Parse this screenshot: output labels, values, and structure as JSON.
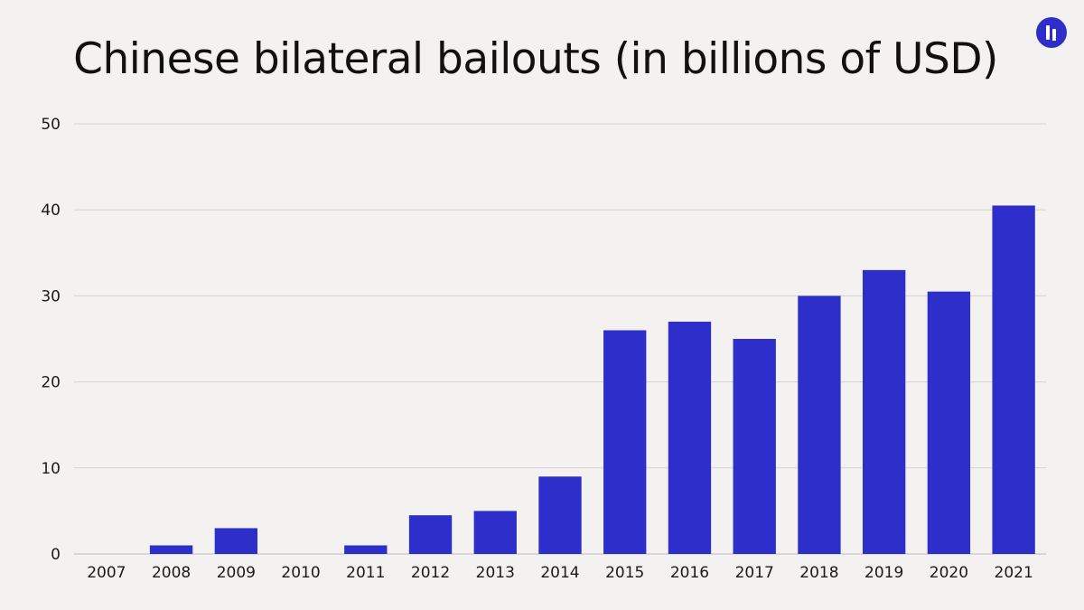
{
  "chart_data": {
    "type": "bar",
    "title": "Chinese bilateral bailouts (in billions of USD)",
    "categories": [
      "2007",
      "2008",
      "2009",
      "2010",
      "2011",
      "2012",
      "2013",
      "2014",
      "2015",
      "2016",
      "2017",
      "2018",
      "2019",
      "2020",
      "2021"
    ],
    "values": [
      0,
      1,
      3,
      0,
      1,
      4.5,
      5,
      9,
      26,
      27,
      25,
      30,
      33,
      30.5,
      40.5
    ],
    "y_ticks": [
      "0",
      "10",
      "20",
      "30",
      "40",
      "50"
    ],
    "ylim": [
      0,
      50
    ],
    "grid": true,
    "legend": "none",
    "colors": {
      "bar": "#2e2ecb",
      "background": "#f4f2f1",
      "grid": "#d4d2d1",
      "logo": "#2e2ecb"
    }
  },
  "logo": {
    "icon": "brand-logo-icon"
  }
}
